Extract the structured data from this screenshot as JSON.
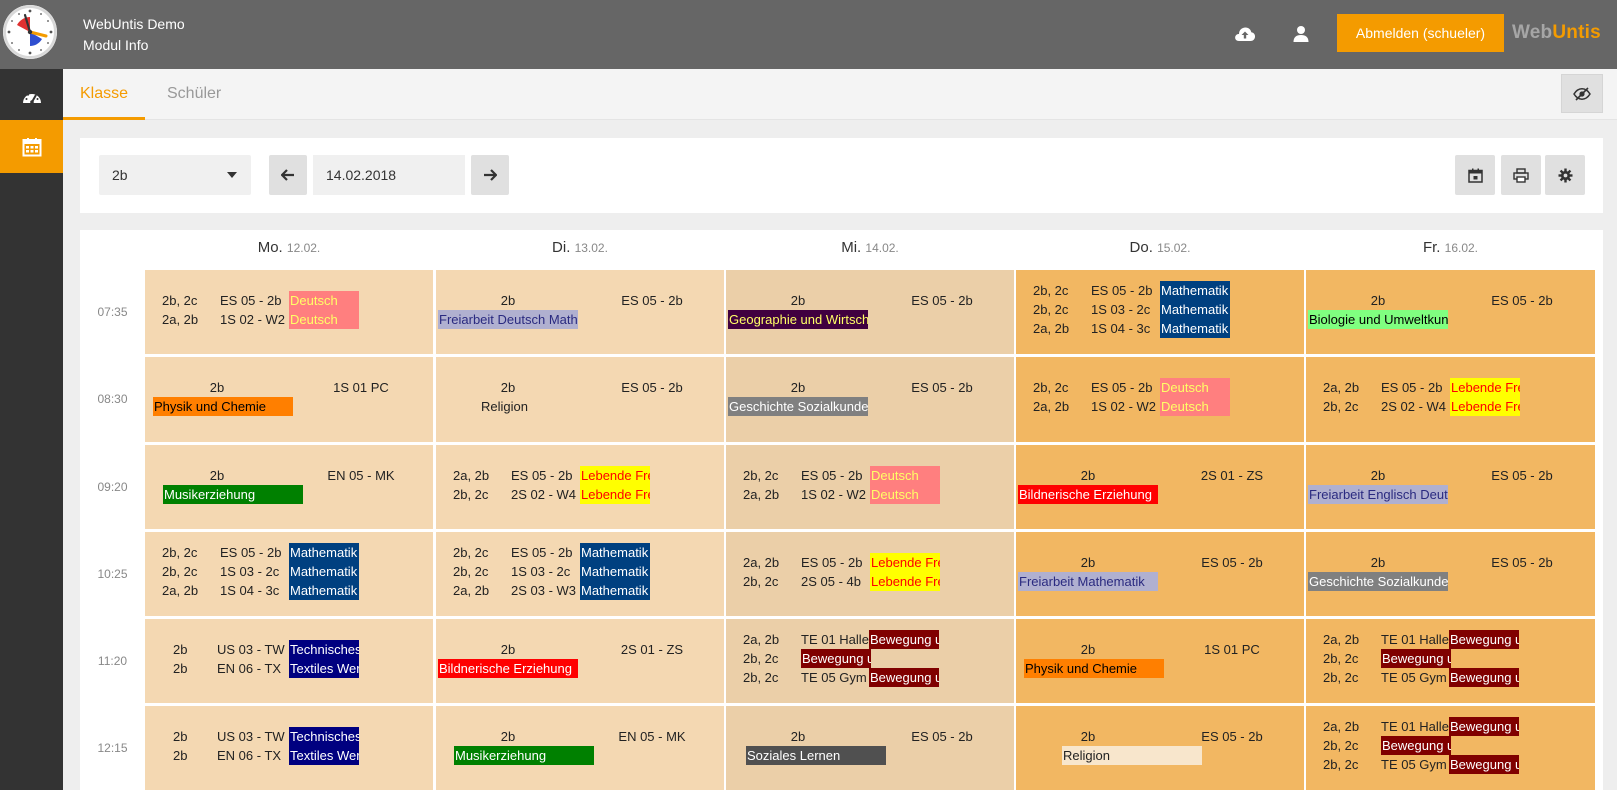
{
  "header": {
    "app_title": "WebUntis Demo",
    "app_subtitle": "Modul Info",
    "logout_label": "Abmelden (schueler)",
    "brand_part1": "Web",
    "brand_part2": "Untis"
  },
  "tabs": [
    {
      "label": "Klasse",
      "active": true
    },
    {
      "label": "Schüler",
      "active": false
    }
  ],
  "controls": {
    "class_select": "2b",
    "date": "14.02.2018"
  },
  "days": [
    {
      "name": "Mo.",
      "date": "12.02."
    },
    {
      "name": "Di.",
      "date": "13.02."
    },
    {
      "name": "Mi.",
      "date": "14.02."
    },
    {
      "name": "Do.",
      "date": "15.02."
    },
    {
      "name": "Fr.",
      "date": "16.02."
    }
  ],
  "times": [
    "07:35",
    "08:30",
    "09:20",
    "10:25",
    "11:20",
    "12:15"
  ],
  "colors": {
    "accent": "#f49b00",
    "header_bg": "#666666",
    "sidebar_bg": "#333333",
    "cell_light": "#f4d8b2",
    "cell_today": "#ebcfa8",
    "cell_dark": "#f2b762"
  },
  "lessons": [
    [
      {
        "layout": "multi",
        "rows": [
          {
            "cls": "2b, 2c",
            "room": "ES 05 - 2b",
            "subject": "Deutsch",
            "bg": "#ff7f7f",
            "fg": "#ffff66"
          },
          {
            "cls": "2a, 2b",
            "room": "1S 02 - W2",
            "subject": "Deutsch",
            "bg": "#ff7f7f",
            "fg": "#ffff66"
          }
        ]
      },
      {
        "layout": "single",
        "cls": "2b",
        "room": "1S 01 PC",
        "subject": "Physik und Chemie",
        "bg": "#ff7f00",
        "fg": "#000000",
        "subj_x": 8
      },
      {
        "layout": "single",
        "cls": "2b",
        "room": "EN 05 - MK",
        "subject": "Musikerziehung",
        "bg": "#008000",
        "fg": "#ffffff",
        "subj_x": 18
      },
      {
        "layout": "multi",
        "rows": [
          {
            "cls": "2b, 2c",
            "room": "ES 05 - 2b",
            "subject": "Mathematik",
            "bg": "#004080",
            "fg": "#ffffff"
          },
          {
            "cls": "2b, 2c",
            "room": "1S 03 - 2c",
            "subject": "Mathematik",
            "bg": "#004080",
            "fg": "#ffffff"
          },
          {
            "cls": "2a, 2b",
            "room": "1S 04 - 3c",
            "subject": "Mathematik",
            "bg": "#004080",
            "fg": "#ffffff"
          }
        ]
      },
      {
        "layout": "multi",
        "wide_cls": true,
        "rows": [
          {
            "cls": "2b",
            "room": "US 03 - TW",
            "subject": "Technisches Werken",
            "bg": "#000080",
            "fg": "#ffffff"
          },
          {
            "cls": "2b",
            "room": "EN 06 - TX",
            "subject": "Textiles Werken",
            "bg": "#000080",
            "fg": "#ffffff"
          }
        ]
      },
      {
        "layout": "multi",
        "wide_cls": true,
        "rows": [
          {
            "cls": "2b",
            "room": "US 03 - TW",
            "subject": "Technisches Werken",
            "bg": "#000080",
            "fg": "#ffffff"
          },
          {
            "cls": "2b",
            "room": "EN 06 - TX",
            "subject": "Textiles Werken",
            "bg": "#000080",
            "fg": "#ffffff"
          }
        ]
      }
    ],
    [
      {
        "layout": "single",
        "cls": "2b",
        "room": "ES 05 - 2b",
        "subject": "Freiarbeit Deutsch Mathematik",
        "bg": "#b0b0d0",
        "fg": "#2a2a80",
        "subj_x": 2
      },
      {
        "layout": "single",
        "cls": "2b",
        "room": "ES 05 - 2b",
        "subject": "Religion",
        "bg": "",
        "fg": "#222222",
        "subj_x": 44
      },
      {
        "layout": "multi",
        "rows": [
          {
            "cls": "2a, 2b",
            "room": "ES 05 - 2b",
            "subject": "Lebende Fremdsprache",
            "bg": "#ffff00",
            "fg": "#ff0000"
          },
          {
            "cls": "2b, 2c",
            "room": "2S 02 - W4",
            "subject": "Lebende Fremdsprache",
            "bg": "#ffff00",
            "fg": "#ff0000"
          }
        ]
      },
      {
        "layout": "multi",
        "rows": [
          {
            "cls": "2b, 2c",
            "room": "ES 05 - 2b",
            "subject": "Mathematik",
            "bg": "#004080",
            "fg": "#ffffff"
          },
          {
            "cls": "2b, 2c",
            "room": "1S 03 - 2c",
            "subject": "Mathematik",
            "bg": "#004080",
            "fg": "#ffffff"
          },
          {
            "cls": "2a, 2b",
            "room": "2S 03 - W3",
            "subject": "Mathematik",
            "bg": "#004080",
            "fg": "#ffffff"
          }
        ]
      },
      {
        "layout": "single",
        "cls": "2b",
        "room": "2S 01 - ZS",
        "subject": "Bildnerische Erziehung",
        "bg": "#ff0000",
        "fg": "#ffffff",
        "subj_x": 2
      },
      {
        "layout": "single",
        "cls": "2b",
        "room": "EN 05 - MK",
        "subject": "Musikerziehung",
        "bg": "#008000",
        "fg": "#ffffff",
        "subj_x": 18
      }
    ],
    [
      {
        "layout": "single",
        "cls": "2b",
        "room": "ES 05 - 2b",
        "subject": "Geographie und Wirtschaftskunde",
        "bg": "#400040",
        "fg": "#ffff66",
        "subj_x": 2
      },
      {
        "layout": "single",
        "cls": "2b",
        "room": "ES 05 - 2b",
        "subject": "Geschichte Sozialkunde",
        "bg": "#808080",
        "fg": "#ffffff",
        "subj_x": 2
      },
      {
        "layout": "multi",
        "rows": [
          {
            "cls": "2b, 2c",
            "room": "ES 05 - 2b",
            "subject": "Deutsch",
            "bg": "#ff7f7f",
            "fg": "#ffff66"
          },
          {
            "cls": "2a, 2b",
            "room": "1S 02 - W2",
            "subject": "Deutsch",
            "bg": "#ff7f7f",
            "fg": "#ffff66"
          }
        ]
      },
      {
        "layout": "multi",
        "rows": [
          {
            "cls": "2a, 2b",
            "room": "ES 05 - 2b",
            "subject": "Lebende Fremdsprache",
            "bg": "#ffff00",
            "fg": "#ff0000"
          },
          {
            "cls": "2b, 2c",
            "room": "2S 05 - 4b",
            "subject": "Lebende Fremdsprache",
            "bg": "#ffff00",
            "fg": "#ff0000"
          }
        ]
      },
      {
        "layout": "multi",
        "narrow": true,
        "rows": [
          {
            "cls": "2a, 2b",
            "room": "TE 01 Halle",
            "subject": "Bewegung und Sport",
            "bg": "#800000",
            "fg": "#ffffff"
          },
          {
            "cls": "2b, 2c",
            "room": "",
            "subject": "Bewegung und Sport",
            "bg": "#800000",
            "fg": "#ffffff"
          },
          {
            "cls": "2b, 2c",
            "room": "TE 05 Gym",
            "subject": "Bewegung und Sport",
            "bg": "#800000",
            "fg": "#ffffff"
          }
        ]
      },
      {
        "layout": "single",
        "cls": "2b",
        "room": "ES 05 - 2b",
        "subject": "Soziales Lernen",
        "bg": "#505050",
        "fg": "#ffffff",
        "subj_x": 20
      }
    ],
    [
      {
        "layout": "multi",
        "rows": [
          {
            "cls": "2b, 2c",
            "room": "ES 05 - 2b",
            "subject": "Mathematik",
            "bg": "#004080",
            "fg": "#ffffff"
          },
          {
            "cls": "2b, 2c",
            "room": "1S 03 - 2c",
            "subject": "Mathematik",
            "bg": "#004080",
            "fg": "#ffffff"
          },
          {
            "cls": "2a, 2b",
            "room": "1S 04 - 3c",
            "subject": "Mathematik",
            "bg": "#004080",
            "fg": "#ffffff"
          }
        ]
      },
      {
        "layout": "multi",
        "rows": [
          {
            "cls": "2b, 2c",
            "room": "ES 05 - 2b",
            "subject": "Deutsch",
            "bg": "#ff7f7f",
            "fg": "#ffff66"
          },
          {
            "cls": "2a, 2b",
            "room": "1S 02 - W2",
            "subject": "Deutsch",
            "bg": "#ff7f7f",
            "fg": "#ffff66"
          }
        ]
      },
      {
        "layout": "single",
        "cls": "2b",
        "room": "2S 01 - ZS",
        "subject": "Bildnerische Erziehung",
        "bg": "#ff0000",
        "fg": "#ffffff",
        "subj_x": 2
      },
      {
        "layout": "single",
        "cls": "2b",
        "room": "ES 05 - 2b",
        "subject": "Freiarbeit Mathematik",
        "bg": "#b0b0d0",
        "fg": "#2a2a80",
        "subj_x": 2
      },
      {
        "layout": "single",
        "cls": "2b",
        "room": "1S 01 PC",
        "subject": "Physik und Chemie",
        "bg": "#ff7f00",
        "fg": "#000000",
        "subj_x": 8
      },
      {
        "layout": "single",
        "cls": "2b",
        "room": "ES 05 - 2b",
        "subject": "Religion",
        "bg": "#f8e6cc",
        "fg": "#222222",
        "subj_x": 46
      }
    ],
    [
      {
        "layout": "single",
        "cls": "2b",
        "room": "ES 05 - 2b",
        "subject": "Biologie und Umweltkunde",
        "bg": "#80ff80",
        "fg": "#000000",
        "subj_x": 2
      },
      {
        "layout": "multi",
        "rows": [
          {
            "cls": "2a, 2b",
            "room": "ES 05 - 2b",
            "subject": "Lebende Fremdsprache",
            "bg": "#ffff00",
            "fg": "#ff0000"
          },
          {
            "cls": "2b, 2c",
            "room": "2S 02 - W4",
            "subject": "Lebende Fremdsprache",
            "bg": "#ffff00",
            "fg": "#ff0000"
          }
        ]
      },
      {
        "layout": "single",
        "cls": "2b",
        "room": "ES 05 - 2b",
        "subject": "Freiarbeit Englisch Deutsch",
        "bg": "#b0b0d0",
        "fg": "#2a2a80",
        "subj_x": 2
      },
      {
        "layout": "single",
        "cls": "2b",
        "room": "ES 05 - 2b",
        "subject": "Geschichte Sozialkunde",
        "bg": "#808080",
        "fg": "#ffffff",
        "subj_x": 2
      },
      {
        "layout": "multi",
        "narrow": true,
        "rows": [
          {
            "cls": "2a, 2b",
            "room": "TE 01 Halle",
            "subject": "Bewegung und Sport",
            "bg": "#800000",
            "fg": "#ffffff"
          },
          {
            "cls": "2b, 2c",
            "room": "",
            "subject": "Bewegung und Sport",
            "bg": "#800000",
            "fg": "#ffffff"
          },
          {
            "cls": "2b, 2c",
            "room": "TE 05 Gym",
            "subject": "Bewegung und Sport",
            "bg": "#800000",
            "fg": "#ffffff"
          }
        ]
      },
      {
        "layout": "multi",
        "narrow": true,
        "rows": [
          {
            "cls": "2a, 2b",
            "room": "TE 01 Halle",
            "subject": "Bewegung und Sport",
            "bg": "#800000",
            "fg": "#ffffff"
          },
          {
            "cls": "2b, 2c",
            "room": "",
            "subject": "Bewegung und Sport",
            "bg": "#800000",
            "fg": "#ffffff"
          },
          {
            "cls": "2b, 2c",
            "room": "TE 05 Gym",
            "subject": "Bewegung und Sport",
            "bg": "#800000",
            "fg": "#ffffff"
          }
        ]
      }
    ]
  ]
}
